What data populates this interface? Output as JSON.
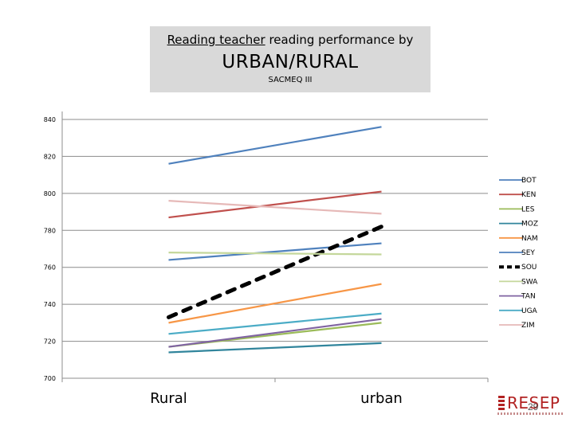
{
  "title": {
    "line1_underlined": "Reading teacher",
    "line1_rest": " reading performance by",
    "line2": "URBAN/RURAL",
    "line3": "SACMEQ III"
  },
  "logo": {
    "text": "RESEP"
  },
  "page_number": "29",
  "chart_data": {
    "type": "line",
    "categories": [
      "Rural",
      "urban"
    ],
    "ylim": [
      700,
      840
    ],
    "yticks": [
      700,
      720,
      740,
      760,
      780,
      800,
      820,
      840
    ],
    "grid": true,
    "legend_position": "right",
    "series": [
      {
        "name": "BOT",
        "values": [
          764,
          773
        ],
        "color": "#4f81bd",
        "dashed": false
      },
      {
        "name": "KEN",
        "values": [
          787,
          801
        ],
        "color": "#c0504d",
        "dashed": false
      },
      {
        "name": "LES",
        "values": [
          717,
          730
        ],
        "color": "#9bbb59",
        "dashed": false
      },
      {
        "name": "MOZ",
        "values": [
          714,
          719
        ],
        "color": "#31859c",
        "dashed": false
      },
      {
        "name": "NAM",
        "values": [
          730,
          751
        ],
        "color": "#f79646",
        "dashed": false
      },
      {
        "name": "SEY",
        "values": [
          816,
          836
        ],
        "color": "#4f81bd",
        "dashed": false
      },
      {
        "name": "SOU",
        "values": [
          733,
          782
        ],
        "color": "#000000",
        "dashed": true
      },
      {
        "name": "SWA",
        "values": [
          768,
          767
        ],
        "color": "#c4d79b",
        "dashed": false
      },
      {
        "name": "TAN",
        "values": [
          717,
          732
        ],
        "color": "#8064a2",
        "dashed": false
      },
      {
        "name": "UGA",
        "values": [
          724,
          735
        ],
        "color": "#4bacc6",
        "dashed": false
      },
      {
        "name": "ZIM",
        "values": [
          796,
          789
        ],
        "color": "#e6b9b8",
        "dashed": false
      }
    ]
  }
}
